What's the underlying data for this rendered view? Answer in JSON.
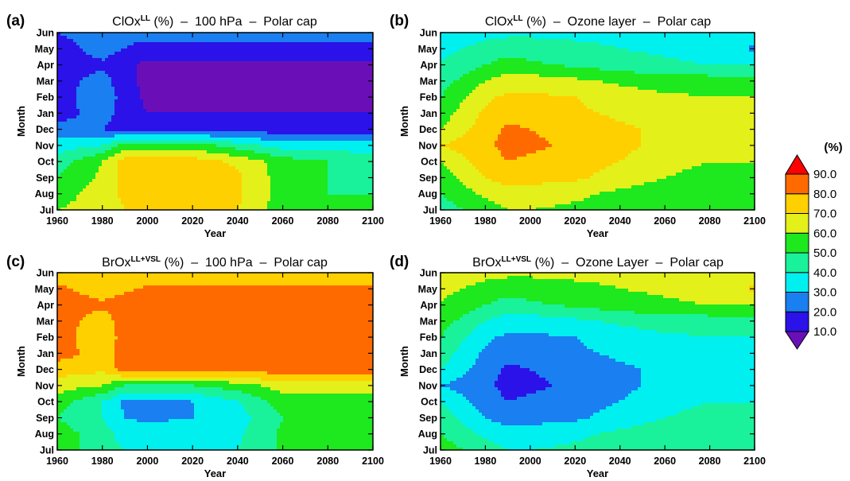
{
  "chart_data": [
    {
      "type": "heatmap",
      "panel": "(a)",
      "title": {
        "species": "ClOx",
        "superscript": "LL",
        "rest": " (%)  –  100 hPa  –  Polar cap"
      },
      "xlabel": "Year",
      "ylabel": "Month",
      "xlim": [
        1960,
        2100
      ],
      "xticks": [
        1960,
        1980,
        2000,
        2020,
        2040,
        2060,
        2080,
        2100
      ],
      "yticks": [
        "Jul",
        "Aug",
        "Sep",
        "Oct",
        "Nov",
        "Dec",
        "Jan",
        "Feb",
        "Mar",
        "Apr",
        "May",
        "Jun"
      ],
      "x": [
        1960,
        1980,
        1990,
        2000,
        2020,
        2040,
        2060,
        2080,
        2100
      ],
      "z": [
        [
          60,
          65,
          70,
          72,
          72,
          70,
          55,
          50,
          50
        ],
        [
          55,
          65,
          72,
          74,
          74,
          72,
          55,
          50,
          50
        ],
        [
          50,
          62,
          74,
          76,
          75,
          72,
          55,
          50,
          45
        ],
        [
          45,
          60,
          74,
          78,
          75,
          68,
          55,
          50,
          45
        ],
        [
          35,
          40,
          55,
          55,
          55,
          45,
          35,
          35,
          35
        ],
        [
          25,
          20,
          15,
          15,
          15,
          15,
          15,
          15,
          15
        ],
        [
          15,
          25,
          15,
          10,
          10,
          10,
          10,
          10,
          10
        ],
        [
          15,
          28,
          15,
          8,
          8,
          8,
          8,
          8,
          8
        ],
        [
          15,
          25,
          12,
          8,
          8,
          8,
          8,
          8,
          8
        ],
        [
          12,
          18,
          12,
          8,
          8,
          8,
          8,
          8,
          8
        ],
        [
          15,
          25,
          20,
          15,
          15,
          15,
          15,
          15,
          15
        ],
        [
          20,
          25,
          25,
          25,
          25,
          25,
          25,
          25,
          25
        ]
      ]
    },
    {
      "type": "heatmap",
      "panel": "(b)",
      "title": {
        "species": "ClOx",
        "superscript": "LL",
        "rest": " (%)  –  Ozone layer  –  Polar cap"
      },
      "xlabel": "Year",
      "ylabel": "Month",
      "xlim": [
        1960,
        2100
      ],
      "xticks": [
        1960,
        1980,
        2000,
        2020,
        2040,
        2060,
        2080,
        2100
      ],
      "yticks": [
        "Jul",
        "Aug",
        "Sep",
        "Oct",
        "Nov",
        "Dec",
        "Jan",
        "Feb",
        "Mar",
        "Apr",
        "May",
        "Jun"
      ],
      "x": [
        1960,
        1980,
        1990,
        2000,
        2020,
        2040,
        2060,
        2080,
        2100
      ],
      "z": [
        [
          45,
          55,
          60,
          60,
          58,
          55,
          50,
          50,
          50
        ],
        [
          50,
          62,
          65,
          65,
          62,
          58,
          55,
          52,
          50
        ],
        [
          55,
          70,
          75,
          74,
          72,
          65,
          60,
          55,
          55
        ],
        [
          60,
          75,
          80,
          78,
          75,
          70,
          65,
          60,
          60
        ],
        [
          70,
          78,
          83,
          82,
          78,
          72,
          68,
          65,
          65
        ],
        [
          60,
          75,
          82,
          80,
          76,
          72,
          68,
          65,
          65
        ],
        [
          55,
          72,
          76,
          75,
          72,
          68,
          65,
          62,
          62
        ],
        [
          50,
          68,
          72,
          72,
          70,
          65,
          62,
          60,
          60
        ],
        [
          45,
          60,
          65,
          65,
          62,
          58,
          55,
          55,
          55
        ],
        [
          40,
          50,
          55,
          52,
          48,
          45,
          42,
          40,
          40
        ],
        [
          38,
          42,
          45,
          45,
          42,
          40,
          38,
          35,
          28
        ],
        [
          35,
          38,
          38,
          38,
          38,
          38,
          38,
          38,
          38
        ]
      ]
    },
    {
      "type": "heatmap",
      "panel": "(c)",
      "title": {
        "species": "BrOx",
        "superscript": "LL+VSL",
        "rest": " (%)  –  100 hPa  –  Polar cap"
      },
      "xlabel": "Year",
      "ylabel": "Month",
      "xlim": [
        1960,
        2100
      ],
      "xticks": [
        1960,
        1980,
        2000,
        2020,
        2040,
        2060,
        2080,
        2100
      ],
      "yticks": [
        "Jul",
        "Aug",
        "Sep",
        "Oct",
        "Nov",
        "Dec",
        "Jan",
        "Feb",
        "Mar",
        "Apr",
        "May",
        "Jun"
      ],
      "x": [
        1960,
        1980,
        1990,
        2000,
        2020,
        2040,
        2060,
        2080,
        2100
      ],
      "z": [
        [
          55,
          45,
          40,
          38,
          38,
          40,
          52,
          55,
          55
        ],
        [
          55,
          45,
          35,
          35,
          35,
          38,
          52,
          55,
          55
        ],
        [
          50,
          40,
          30,
          28,
          30,
          35,
          50,
          55,
          55
        ],
        [
          55,
          40,
          28,
          25,
          30,
          40,
          55,
          55,
          55
        ],
        [
          65,
          60,
          50,
          50,
          50,
          55,
          65,
          65,
          65
        ],
        [
          75,
          72,
          85,
          85,
          85,
          85,
          85,
          85,
          85
        ],
        [
          85,
          75,
          85,
          88,
          88,
          88,
          88,
          88,
          88
        ],
        [
          85,
          72,
          85,
          88,
          88,
          88,
          88,
          88,
          88
        ],
        [
          85,
          75,
          85,
          88,
          88,
          88,
          88,
          88,
          88
        ],
        [
          85,
          82,
          85,
          88,
          88,
          88,
          88,
          88,
          88
        ],
        [
          82,
          75,
          78,
          82,
          82,
          82,
          82,
          82,
          82
        ],
        [
          75,
          72,
          70,
          72,
          75,
          75,
          75,
          75,
          75
        ]
      ]
    },
    {
      "type": "heatmap",
      "panel": "(d)",
      "title": {
        "species": "BrOx",
        "superscript": "LL+VSL",
        "rest": " (%)  –  Ozone Layer  –  Polar cap"
      },
      "xlabel": "Year",
      "ylabel": "Month",
      "xlim": [
        1960,
        2100
      ],
      "xticks": [
        1960,
        1980,
        2000,
        2020,
        2040,
        2060,
        2080,
        2100
      ],
      "yticks": [
        "Jul",
        "Aug",
        "Sep",
        "Oct",
        "Nov",
        "Dec",
        "Jan",
        "Feb",
        "Mar",
        "Apr",
        "May",
        "Jun"
      ],
      "x": [
        1960,
        1980,
        1990,
        2000,
        2020,
        2040,
        2060,
        2080,
        2100
      ],
      "z": [
        [
          55,
          45,
          40,
          40,
          42,
          45,
          50,
          50,
          50
        ],
        [
          50,
          38,
          35,
          35,
          38,
          42,
          45,
          48,
          50
        ],
        [
          45,
          30,
          25,
          26,
          28,
          35,
          40,
          45,
          45
        ],
        [
          40,
          25,
          20,
          22,
          25,
          30,
          35,
          40,
          40
        ],
        [
          30,
          22,
          17,
          18,
          22,
          28,
          32,
          35,
          35
        ],
        [
          40,
          25,
          18,
          20,
          24,
          28,
          32,
          35,
          35
        ],
        [
          45,
          28,
          24,
          25,
          28,
          32,
          35,
          38,
          38
        ],
        [
          50,
          32,
          28,
          28,
          30,
          35,
          38,
          40,
          40
        ],
        [
          55,
          40,
          35,
          35,
          38,
          42,
          45,
          45,
          45
        ],
        [
          60,
          50,
          45,
          48,
          52,
          55,
          58,
          60,
          60
        ],
        [
          62,
          58,
          55,
          55,
          58,
          60,
          62,
          65,
          72
        ],
        [
          65,
          62,
          62,
          62,
          62,
          62,
          62,
          62,
          62
        ]
      ]
    }
  ],
  "colorbar": {
    "unit_label": "(%)",
    "levels": [
      10.0,
      20.0,
      30.0,
      40.0,
      50.0,
      60.0,
      70.0,
      80.0,
      90.0
    ],
    "level_labels": [
      "10.0",
      "20.0",
      "30.0",
      "40.0",
      "50.0",
      "60.0",
      "70.0",
      "80.0",
      "90.0"
    ],
    "colors": [
      "#6a0fb8",
      "#2b12e8",
      "#1a7ff0",
      "#00f0f0",
      "#19f29a",
      "#1ee81e",
      "#e4f01a",
      "#ffd000",
      "#ff6a00",
      "#ff0000"
    ]
  }
}
